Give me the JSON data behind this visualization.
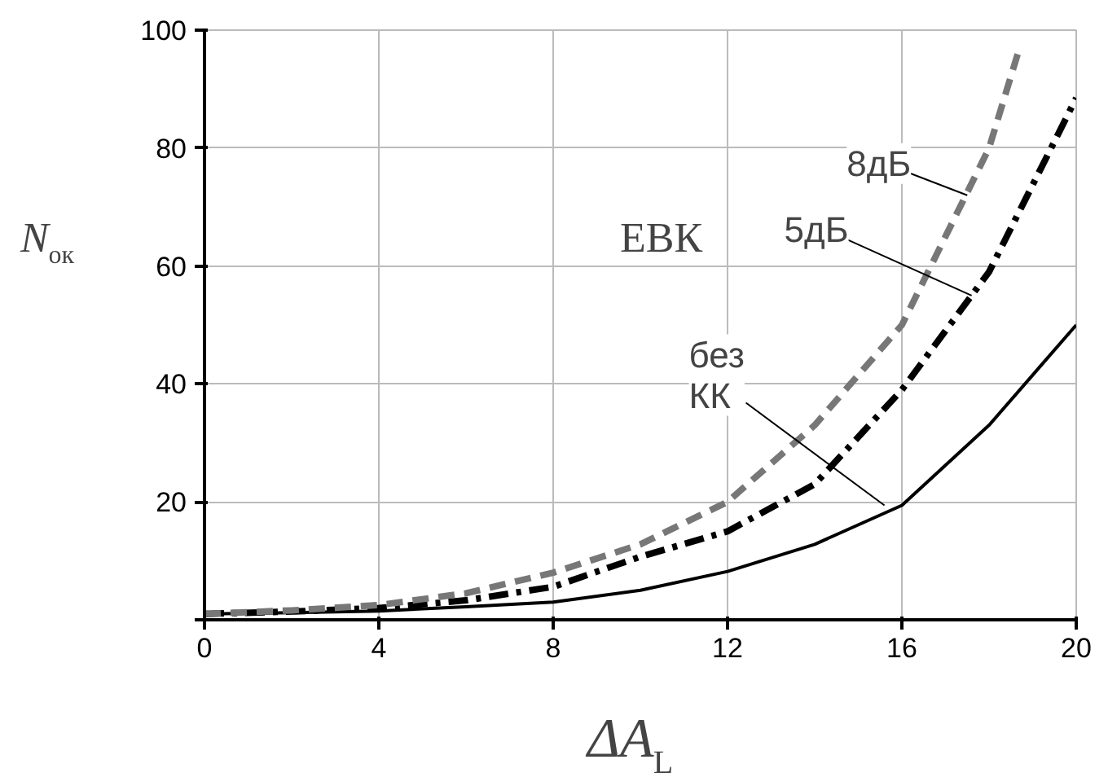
{
  "chart_data": {
    "type": "line",
    "xlabel": "ΔA$_{L}$",
    "ylabel": "N$_{ок}$",
    "x": [
      0,
      2,
      4,
      6,
      8,
      10,
      12,
      14,
      16,
      18,
      20
    ],
    "series": [
      {
        "color": "#000000",
        "line_style": "solid",
        "values": [
          1,
          1.2,
          1.5,
          2.2,
          3,
          5,
          8.2,
          12.8,
          19.4,
          33,
          50
        ]
      },
      {
        "color": "#000000",
        "line_style": "dashdot",
        "values": [
          1,
          1.4,
          2,
          3.3,
          5.6,
          10.7,
          15,
          23,
          39,
          59,
          88.5
        ]
      },
      {
        "color": "#777777",
        "line_style": "dashed",
        "x": [
          0,
          2,
          4,
          6,
          8,
          10,
          12,
          14,
          16,
          18,
          18.7
        ],
        "values": [
          1,
          1.6,
          2.5,
          4.5,
          8,
          12.8,
          20,
          33,
          50,
          80,
          97
        ]
      }
    ],
    "annotations": [
      "ЕВК",
      {
        "text": "8дБ",
        "x": 17.5,
        "y": 72
      },
      {
        "text": "5дБ",
        "x": 17.6,
        "y": 55
      },
      {
        "text": "без\nКК",
        "x": 15.6,
        "y": 19.4
      }
    ],
    "xlim": [
      0,
      20
    ],
    "ylim": [
      0,
      100
    ],
    "xticks": [
      0,
      4,
      8,
      12,
      16,
      20
    ],
    "yticks": [
      {
        "value": 0,
        "label": null
      },
      20,
      40,
      60,
      80,
      100
    ],
    "grid": true
  }
}
